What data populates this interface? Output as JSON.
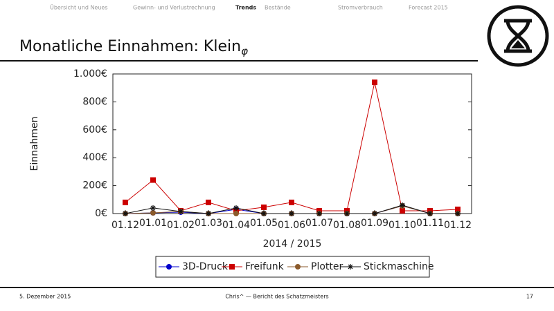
{
  "slide": {
    "nav": [
      "Übersicht und Neues",
      "Gewinn- und Verlustrechnung",
      "Trends",
      "Bestände",
      "Stromverbrauch",
      "Forecast 2015"
    ],
    "nav_active": 2,
    "title": "Monatliche Einnahmen: Klein",
    "title_subscript": "φ"
  },
  "footer": {
    "date": "5. Dezember 2015",
    "author": "Chris^ — Bericht des Schatzmeisters",
    "page": "17"
  },
  "chart_data": {
    "type": "line",
    "x_label": "2014 / 2015",
    "y_label": "Einnahmen",
    "categories": [
      "01.12",
      "01.01",
      "01.02",
      "01.03",
      "01.04",
      "01.05",
      "01.06",
      "01.07",
      "01.08",
      "01.09",
      "01.10",
      "01.11",
      "01.12"
    ],
    "ylim": [
      0,
      1000
    ],
    "yticks": [
      {
        "value": 0,
        "label": "0€"
      },
      {
        "value": 200,
        "label": "200€"
      },
      {
        "value": 400,
        "label": "400€"
      },
      {
        "value": 600,
        "label": "600€"
      },
      {
        "value": 800,
        "label": "800€"
      },
      {
        "value": 1000,
        "label": "1.000€"
      }
    ],
    "series": [
      {
        "name": "3D-Druck",
        "color": "#0000cc",
        "marker": "circle",
        "values": [
          0,
          5,
          10,
          0,
          30,
          0,
          0,
          0,
          0,
          0,
          55,
          0,
          0
        ]
      },
      {
        "name": "Freifunk",
        "color": "#cc0000",
        "marker": "square",
        "values": [
          80,
          240,
          20,
          80,
          20,
          45,
          80,
          20,
          20,
          940,
          20,
          20,
          30
        ]
      },
      {
        "name": "Plotter",
        "color": "#8b5a2b",
        "marker": "circle",
        "values": [
          0,
          5,
          15,
          0,
          0,
          0,
          0,
          0,
          0,
          0,
          55,
          0,
          0
        ]
      },
      {
        "name": "Stickmaschine",
        "color": "#111111",
        "marker": "star",
        "values": [
          0,
          40,
          15,
          0,
          40,
          0,
          0,
          0,
          0,
          0,
          60,
          0,
          0
        ]
      }
    ]
  }
}
